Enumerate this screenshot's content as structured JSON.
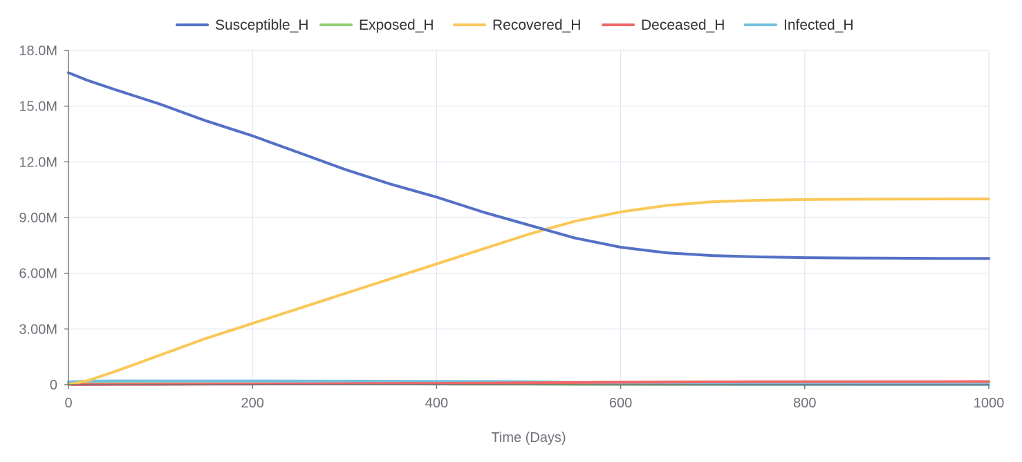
{
  "chart_data": {
    "type": "line",
    "xlabel": "Time (Days)",
    "ylabel": "",
    "xlim": [
      0,
      1000
    ],
    "ylim": [
      0,
      18000000
    ],
    "x_ticks": [
      0,
      200,
      400,
      600,
      800,
      1000
    ],
    "x_tick_labels": [
      "0",
      "200",
      "400",
      "600",
      "800",
      "1000"
    ],
    "y_ticks": [
      0,
      3000000,
      6000000,
      9000000,
      12000000,
      15000000,
      18000000
    ],
    "y_tick_labels": [
      "0",
      "3.00M",
      "6.00M",
      "9.00M",
      "12.0M",
      "15.0M",
      "18.0M"
    ],
    "grid": true,
    "legend_position": "top-center",
    "x": [
      0,
      20,
      50,
      100,
      150,
      200,
      250,
      300,
      350,
      400,
      450,
      500,
      550,
      600,
      650,
      700,
      750,
      800,
      850,
      900,
      950,
      1000
    ],
    "series": [
      {
        "name": "Susceptible_H",
        "color": "#5470c6",
        "values": [
          16800000,
          16400000,
          15900000,
          15100000,
          14200000,
          13400000,
          12500000,
          11600000,
          10800000,
          10100000,
          9300000,
          8600000,
          7900000,
          7400000,
          7100000,
          6950000,
          6880000,
          6840000,
          6820000,
          6810000,
          6800000,
          6800000
        ]
      },
      {
        "name": "Exposed_H",
        "color": "#91cc75",
        "values": [
          50000,
          50000,
          50000,
          50000,
          45000,
          45000,
          45000,
          40000,
          40000,
          35000,
          30000,
          25000,
          15000,
          8000,
          4000,
          2000,
          1000,
          500,
          200,
          100,
          50,
          20
        ]
      },
      {
        "name": "Recovered_H",
        "color": "#fac858",
        "values": [
          0,
          200000,
          700000,
          1600000,
          2500000,
          3300000,
          4100000,
          4900000,
          5700000,
          6500000,
          7300000,
          8100000,
          8800000,
          9300000,
          9650000,
          9850000,
          9930000,
          9970000,
          9985000,
          9995000,
          10000000,
          10000000
        ]
      },
      {
        "name": "Deceased_H",
        "color": "#ee6666",
        "values": [
          0,
          3000,
          8000,
          16000,
          25000,
          33000,
          42000,
          52000,
          62000,
          72000,
          85000,
          100000,
          115000,
          130000,
          140000,
          148000,
          153000,
          156000,
          158000,
          160000,
          161000,
          162000
        ]
      },
      {
        "name": "Infected_H",
        "color": "#73c0de",
        "values": [
          150000,
          190000,
          200000,
          200000,
          200000,
          200000,
          195000,
          190000,
          185000,
          180000,
          175000,
          160000,
          120000,
          70000,
          40000,
          25000,
          15000,
          10000,
          6000,
          4000,
          3000,
          2000
        ]
      }
    ]
  }
}
